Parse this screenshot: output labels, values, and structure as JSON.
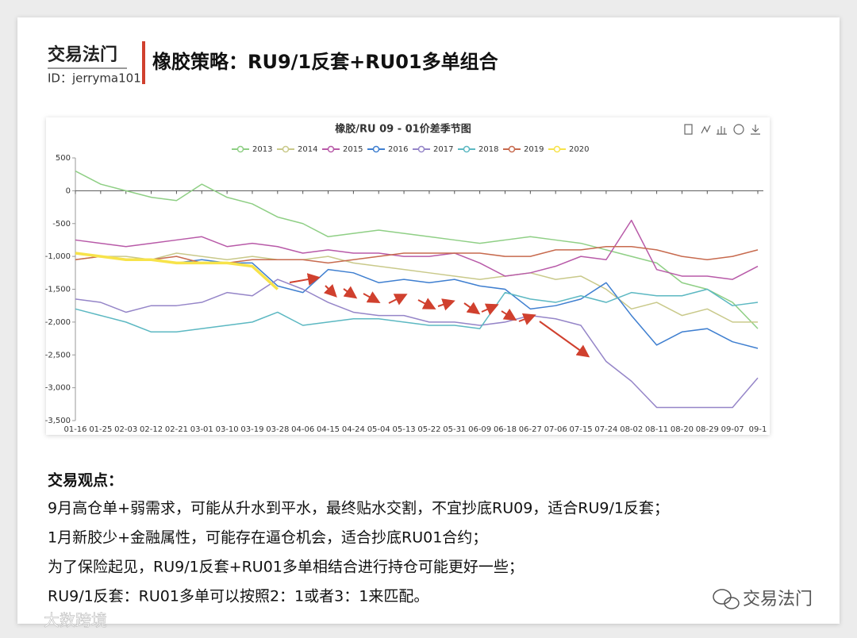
{
  "header": {
    "brand": "交易法门",
    "id": "ID：jerryma101",
    "title": "橡胶策略：RU9/1反套+RU01多单组合"
  },
  "chart_data": {
    "type": "line",
    "title": "橡胶/RU 09 - 01价差季节图",
    "categories": [
      "01-16",
      "01-25",
      "02-03",
      "02-12",
      "02-21",
      "03-01",
      "03-10",
      "03-19",
      "03-28",
      "04-06",
      "04-15",
      "04-24",
      "05-04",
      "05-13",
      "05-22",
      "05-31",
      "06-09",
      "06-18",
      "06-27",
      "07-06",
      "07-15",
      "07-24",
      "08-02",
      "08-11",
      "08-20",
      "08-29",
      "09-07",
      "09-1"
    ],
    "ylim": [
      -3500,
      500
    ],
    "yticks": [
      500,
      0,
      -500,
      {
        "value": -1000,
        "label": "-1,000"
      },
      {
        "value": -1500,
        "label": "-1,500"
      },
      {
        "value": -2000,
        "label": "-2,000"
      },
      {
        "value": -2500,
        "label": "-2,500"
      },
      {
        "value": -3000,
        "label": "-3,000"
      },
      {
        "value": -3500,
        "label": "-3,500"
      }
    ],
    "series": [
      {
        "name": "2013",
        "color": "#8fcf85",
        "values": [
          300,
          100,
          0,
          -100,
          -150,
          100,
          -100,
          -200,
          -400,
          -500,
          -700,
          -650,
          -600,
          -650,
          -700,
          -750,
          -800,
          -750,
          -700,
          -750,
          -800,
          -900,
          -1000,
          -1100,
          -1400,
          -1500,
          -1700,
          -2100
        ]
      },
      {
        "name": "2014",
        "color": "#c9c98a",
        "values": [
          -1050,
          -1000,
          -1000,
          -1050,
          -950,
          -1000,
          -1050,
          -1000,
          -1050,
          -1050,
          -1000,
          -1100,
          -1150,
          -1200,
          -1250,
          -1300,
          -1350,
          -1300,
          -1250,
          -1350,
          -1300,
          -1500,
          -1800,
          -1700,
          -1900,
          -1800,
          -2000,
          -2000
        ]
      },
      {
        "name": "2015",
        "color": "#b85aa8",
        "values": [
          -750,
          -800,
          -850,
          -800,
          -750,
          -700,
          -850,
          -800,
          -850,
          -950,
          -900,
          -950,
          -950,
          -1000,
          -1000,
          -950,
          -1100,
          -1300,
          -1250,
          -1150,
          -1000,
          -1050,
          -450,
          -1200,
          -1300,
          -1300,
          -1350,
          -1150
        ]
      },
      {
        "name": "2016",
        "color": "#3f7fd0",
        "values": [
          -950,
          -1000,
          -1050,
          -1050,
          -1100,
          -1050,
          -1100,
          -1100,
          -1450,
          -1550,
          -1200,
          -1250,
          -1400,
          -1350,
          -1400,
          -1350,
          -1450,
          -1500,
          -1800,
          -1750,
          -1650,
          -1400,
          -1900,
          -2350,
          -2150,
          -2100,
          -2300,
          -2400
        ]
      },
      {
        "name": "2017",
        "color": "#9585c8",
        "values": [
          -1650,
          -1700,
          -1850,
          -1750,
          -1750,
          -1700,
          -1550,
          -1600,
          -1350,
          -1500,
          -1700,
          -1850,
          -1900,
          -1900,
          -2000,
          -2000,
          -2050,
          -2000,
          -1900,
          -1950,
          -2050,
          -2600,
          -2900,
          -3300,
          -3300,
          -3300,
          -3300,
          -2850
        ]
      },
      {
        "name": "2018",
        "color": "#5cb8c2",
        "values": [
          -1800,
          -1900,
          -2000,
          -2150,
          -2150,
          -2100,
          -2050,
          -2000,
          -1850,
          -2050,
          -2000,
          -1950,
          -1950,
          -2000,
          -2050,
          -2050,
          -2100,
          -1550,
          -1650,
          -1700,
          -1600,
          -1700,
          -1550,
          -1600,
          -1600,
          -1500,
          -1750,
          -1700
        ]
      },
      {
        "name": "2019",
        "color": "#c76a4e",
        "values": [
          -1050,
          -1000,
          -1050,
          -1050,
          -1000,
          -1100,
          -1100,
          -1050,
          -1050,
          -1050,
          -1100,
          -1050,
          -1000,
          -950,
          -950,
          -950,
          -950,
          -1000,
          -1000,
          -900,
          -900,
          -850,
          -850,
          -900,
          -1000,
          -1050,
          -1000,
          -900
        ]
      },
      {
        "name": "2020",
        "color": "#f7e34a",
        "values": [
          -950,
          -1000,
          -1050,
          -1050,
          -1100,
          -1100,
          -1100,
          -1150,
          -1500,
          null,
          null,
          null,
          null,
          null,
          null,
          null,
          null,
          null,
          null,
          null,
          null,
          null,
          null,
          null,
          null,
          null,
          null,
          null
        ]
      }
    ]
  },
  "body": {
    "heading": "交易观点：",
    "lines": [
      "9月高仓单+弱需求，可能从升水到平水，最终贴水交割，不宜抄底RU09，适合RU9/1反套；",
      "1月新胶少+金融属性，可能存在逼仓机会，适合抄底RU01合约；",
      "为了保险起见，RU9/1反套+RU01多单相结合进行持仓可能更好一些；",
      "RU9/1反套：RU01多单可以按照2：1或者3：1来匹配。"
    ]
  },
  "footer": {
    "left": "大数跨境",
    "right": "交易法门"
  }
}
